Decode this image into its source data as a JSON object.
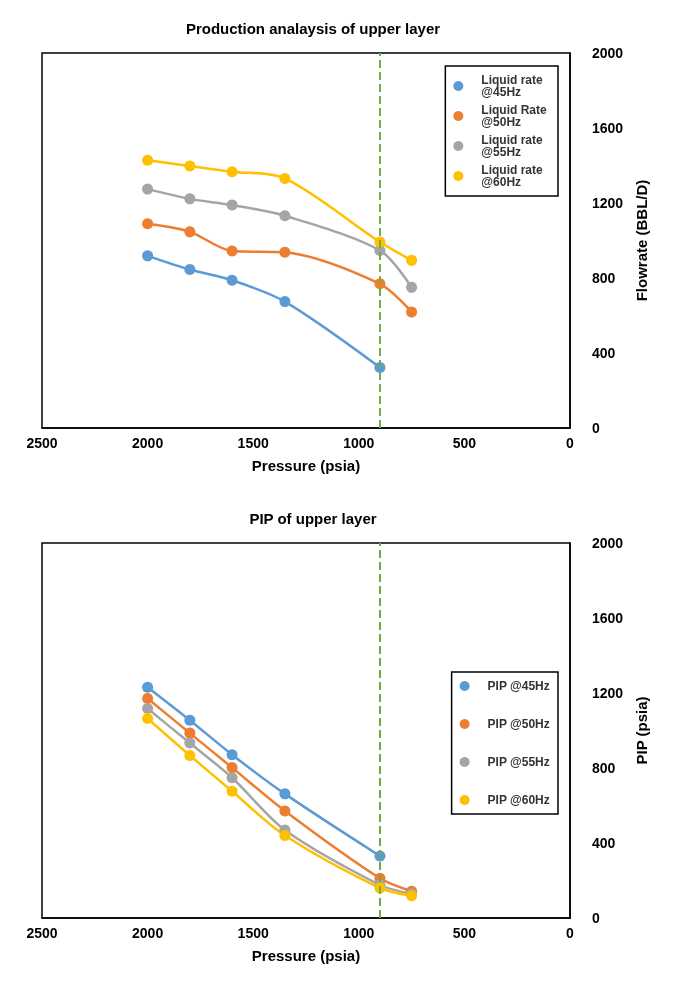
{
  "chart_data": [
    {
      "type": "line",
      "title": "Production analaysis of upper layer",
      "xlabel": "Pressure (psia)",
      "ylabel": "Flowrate (BBL/D)",
      "x": [
        2000,
        1800,
        1600,
        1350,
        900,
        750
      ],
      "series": [
        {
          "name": "Liquid rate @45Hz",
          "color": "#5b9bd5",
          "values": [
            918,
            845,
            788,
            674,
            323,
            null
          ]
        },
        {
          "name": "Liquid Rate @50Hz",
          "color": "#ed7d31",
          "values": [
            1089,
            1046,
            944,
            937,
            769,
            619
          ]
        },
        {
          "name": "Liquid rate @55Hz",
          "color": "#a5a5a5",
          "values": [
            1274,
            1222,
            1189,
            1132,
            947,
            750
          ]
        },
        {
          "name": "Liquid rate @60Hz",
          "color": "#ffc000",
          "values": [
            1428,
            1397,
            1367,
            1331,
            992,
            894
          ]
        }
      ],
      "xlim": [
        2500,
        0
      ],
      "xticks": [
        2500,
        2000,
        1500,
        1000,
        500,
        0
      ],
      "ylim": [
        0,
        2000
      ],
      "yticks": [
        0,
        400,
        800,
        1200,
        1600,
        2000
      ],
      "ref_lines": [
        {
          "axis": "x",
          "value": 900,
          "color": "#70ad47",
          "line_style": "dashed"
        }
      ],
      "grid": false,
      "legend": "top right",
      "marker": "circle",
      "line_style": "solid"
    },
    {
      "type": "line",
      "title": "PIP of upper layer",
      "xlabel": "Pressure (psia)",
      "ylabel": "PIP (psia)",
      "x": [
        2000,
        1800,
        1600,
        1350,
        900,
        750
      ],
      "series": [
        {
          "name": "PIP @45Hz",
          "color": "#5b9bd5",
          "values": [
            1231,
            1055,
            871,
            662,
            331,
            null
          ]
        },
        {
          "name": "PIP @50Hz",
          "color": "#ed7d31",
          "values": [
            1171,
            986,
            802,
            571,
            212,
            143
          ]
        },
        {
          "name": "PIP @55Hz",
          "color": "#a5a5a5",
          "values": [
            1117,
            933,
            748,
            469,
            176,
            129
          ]
        },
        {
          "name": "PIP @60Hz",
          "color": "#ffc000",
          "values": [
            1064,
            867,
            676,
            440,
            160,
            119
          ]
        }
      ],
      "xlim": [
        2500,
        0
      ],
      "xticks": [
        2500,
        2000,
        1500,
        1000,
        500,
        0
      ],
      "ylim": [
        0,
        2000
      ],
      "yticks": [
        0,
        400,
        800,
        1200,
        1600,
        2000
      ],
      "ref_lines": [
        {
          "axis": "x",
          "value": 900,
          "color": "#70ad47",
          "line_style": "dashed"
        }
      ],
      "grid": false,
      "legend": "right",
      "marker": "circle",
      "line_style": "solid"
    }
  ]
}
